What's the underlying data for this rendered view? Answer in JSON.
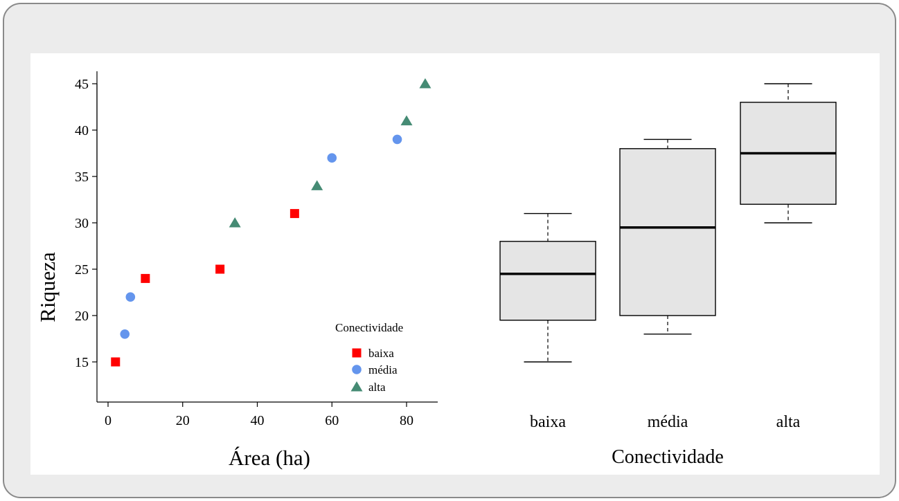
{
  "chart_data": [
    {
      "type": "scatter",
      "xlabel": "Área (ha)",
      "ylabel": "Riqueza",
      "xlim": [
        0,
        88
      ],
      "ylim": [
        10.5,
        46.5
      ],
      "x_ticks": [
        0,
        20,
        40,
        60,
        80
      ],
      "y_ticks": [
        15,
        20,
        25,
        30,
        35,
        40,
        45
      ],
      "legend": {
        "title": "Conectividade",
        "position": "bottom-right",
        "entries": [
          "baixa",
          "média",
          "alta"
        ]
      },
      "series": [
        {
          "name": "baixa",
          "marker": "square",
          "color": "#ff0000",
          "points": [
            [
              2,
              15
            ],
            [
              10,
              24
            ],
            [
              30,
              25
            ],
            [
              50,
              31
            ]
          ]
        },
        {
          "name": "média",
          "marker": "circle",
          "color": "#6495ed",
          "points": [
            [
              4.5,
              18
            ],
            [
              6,
              22
            ],
            [
              60,
              37
            ],
            [
              77.5,
              39
            ]
          ]
        },
        {
          "name": "alta",
          "marker": "triangle",
          "color": "#458b74",
          "points": [
            [
              34,
              30
            ],
            [
              56,
              34
            ],
            [
              80,
              41
            ],
            [
              85,
              45
            ]
          ]
        }
      ]
    },
    {
      "type": "boxplot",
      "xlabel": "Conectividade",
      "ylabel": "",
      "categories": [
        "baixa",
        "média",
        "alta"
      ],
      "box_color": "#e5e5e5",
      "boxes": [
        {
          "name": "baixa",
          "min": 15,
          "q1": 19.5,
          "median": 24.5,
          "q3": 28,
          "max": 31
        },
        {
          "name": "média",
          "min": 18,
          "q1": 20,
          "median": 29.5,
          "q3": 38,
          "max": 39
        },
        {
          "name": "alta",
          "min": 30,
          "q1": 32,
          "median": 37.5,
          "q3": 43,
          "max": 45
        }
      ]
    }
  ]
}
